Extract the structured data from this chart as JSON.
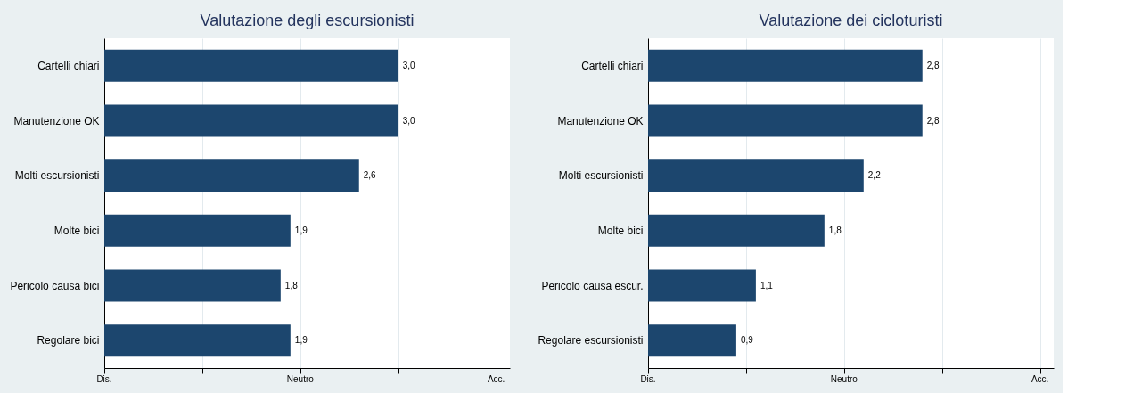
{
  "chart_data": [
    {
      "type": "bar",
      "orientation": "horizontal",
      "title": "Valutazione degli escursionisti",
      "categories": [
        "Cartelli chiari",
        "Manutenzione OK",
        "Molti escursionisti",
        "Molte bici",
        "Pericolo causa bici",
        "Regolare bici"
      ],
      "values": [
        3.0,
        3.0,
        2.6,
        1.9,
        1.8,
        1.9
      ],
      "value_labels": [
        "3,0",
        "3,0",
        "2,6",
        "1,9",
        "1,8",
        "1,9"
      ],
      "color": "#1c466e",
      "xlim": [
        0,
        4.14
      ],
      "xticks": [
        {
          "value": 0,
          "label": null
        },
        {
          "value": 1,
          "label": null
        },
        {
          "value": 2,
          "label": null
        },
        {
          "value": 3,
          "label": null
        },
        {
          "value": 4,
          "label": null
        }
      ],
      "grid": "x",
      "annotations": [
        "Dis.",
        "Neutro",
        "Acc."
      ]
    },
    {
      "type": "bar",
      "orientation": "horizontal",
      "title": "Valutazione dei cicloturisti",
      "categories": [
        "Cartelli chiari",
        "Manutenzione OK",
        "Molti escursionisti",
        "Molte bici",
        "Pericolo causa escur.",
        "Regolare escursionisti"
      ],
      "values": [
        2.8,
        2.8,
        2.2,
        1.8,
        1.1,
        0.9
      ],
      "value_labels": [
        "2,8",
        "2,8",
        "2,2",
        "1,8",
        "1,1",
        "0,9"
      ],
      "color": "#1c466e",
      "xlim": [
        0,
        4.14
      ],
      "xticks": [
        {
          "value": 0,
          "label": null
        },
        {
          "value": 1,
          "label": null
        },
        {
          "value": 2,
          "label": null
        },
        {
          "value": 3,
          "label": null
        },
        {
          "value": 4,
          "label": null
        }
      ],
      "grid": "x",
      "annotations": [
        "Dis.",
        "Neutro",
        "Acc."
      ]
    }
  ]
}
